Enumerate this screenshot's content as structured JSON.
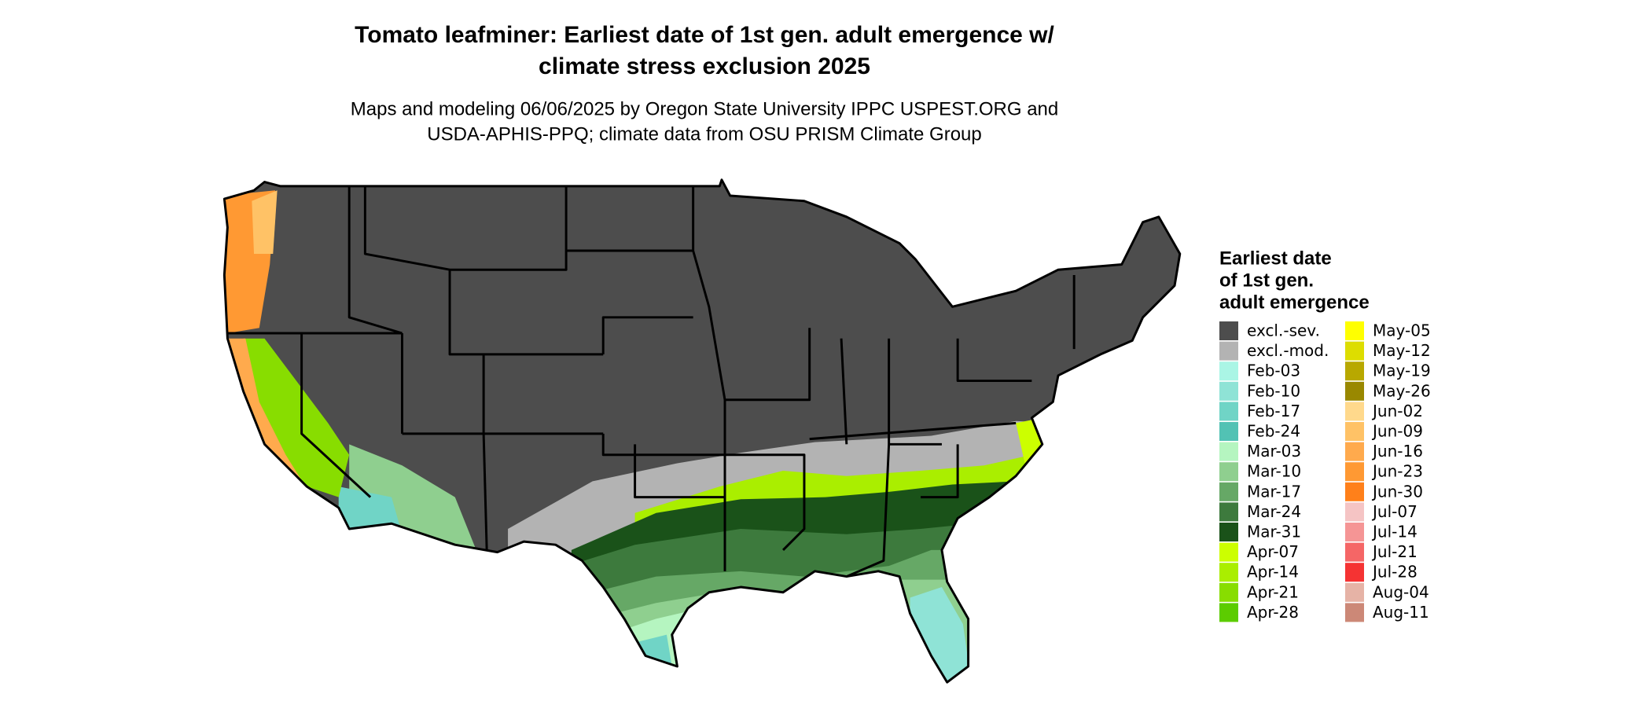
{
  "map": {
    "title": [
      "Tomato leafminer: Earliest date of 1st gen. adult emergence w/",
      "climate stress exclusion 2025"
    ],
    "subtitle": [
      "Maps and modeling 06/06/2025 by Oregon State University IPPC USPEST.ORG and",
      "USDA-APHIS-PPQ; climate data from OSU PRISM Climate Group"
    ],
    "legend": {
      "title": [
        "Earliest date",
        "of 1st gen.",
        "adult emergence"
      ],
      "items": [
        {
          "label": "excl.-sev.",
          "color": "#4d4d4d"
        },
        {
          "label": "excl.-mod.",
          "color": "#b3b3b3"
        },
        {
          "label": "Feb-03",
          "color": "#aaf5e5"
        },
        {
          "label": "Feb-10",
          "color": "#8fe3d6"
        },
        {
          "label": "Feb-17",
          "color": "#70d4c6"
        },
        {
          "label": "Feb-24",
          "color": "#52c2b4"
        },
        {
          "label": "Mar-03",
          "color": "#b5f5c0"
        },
        {
          "label": "Mar-10",
          "color": "#8fcf8f"
        },
        {
          "label": "Mar-17",
          "color": "#66a866"
        },
        {
          "label": "Mar-24",
          "color": "#3d7a3d"
        },
        {
          "label": "Mar-31",
          "color": "#1a5219"
        },
        {
          "label": "Apr-07",
          "color": "#ccff00"
        },
        {
          "label": "Apr-14",
          "color": "#aaee00"
        },
        {
          "label": "Apr-21",
          "color": "#88dd00"
        },
        {
          "label": "Apr-28",
          "color": "#5ccc00"
        },
        {
          "label": "May-05",
          "color": "#ffff00"
        },
        {
          "label": "May-12",
          "color": "#dddd00"
        },
        {
          "label": "May-19",
          "color": "#b8a800"
        },
        {
          "label": "May-26",
          "color": "#998800"
        },
        {
          "label": "Jun-02",
          "color": "#ffd98c"
        },
        {
          "label": "Jun-09",
          "color": "#ffc266"
        },
        {
          "label": "Jun-16",
          "color": "#ffaa4d"
        },
        {
          "label": "Jun-23",
          "color": "#ff9933"
        },
        {
          "label": "Jun-30",
          "color": "#ff801a"
        },
        {
          "label": "Jul-07",
          "color": "#f5c4c4"
        },
        {
          "label": "Jul-14",
          "color": "#f59595"
        },
        {
          "label": "Jul-21",
          "color": "#f56666"
        },
        {
          "label": "Jul-28",
          "color": "#f53333"
        },
        {
          "label": "Aug-04",
          "color": "#e6b3a6"
        },
        {
          "label": "Aug-11",
          "color": "#cc8877"
        }
      ]
    }
  }
}
